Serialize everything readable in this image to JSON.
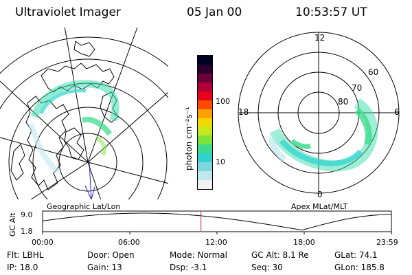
{
  "header": {
    "title": "Ultraviolet Imager",
    "date": "05 Jan 00",
    "time": "10:53:57 UT"
  },
  "colorbar": {
    "unit_label": "photon cm⁻²s⁻¹",
    "tick_100": "100",
    "tick_10": "10",
    "colors": [
      "#f2f2f2",
      "#bfe8ee",
      "#7fd7dd",
      "#2fd4cf",
      "#3ddc8c",
      "#7fe23a",
      "#c8e81e",
      "#f0d800",
      "#ff9f00",
      "#ff4a00",
      "#e8001a",
      "#b00038",
      "#6a0038",
      "#2a0030",
      "#000020"
    ]
  },
  "left_map": {
    "label": "Geographic Lat/Lon"
  },
  "right_map": {
    "label": "Apex  MLat/MLT",
    "mlt": {
      "top": "12",
      "left": "18",
      "right": "6",
      "bottom": "0"
    },
    "lat": {
      "l60": "60",
      "l70": "70",
      "l80": "80"
    }
  },
  "altitude_plot": {
    "ylabel": "GC Alt",
    "y_top": "9.0",
    "y_bottom": "1.8",
    "x_ticks": [
      "00:00",
      "06:00",
      "12:00",
      "18:00",
      "23:59"
    ],
    "marker_time_hours": 10.899
  },
  "footer": {
    "filter": "Flt: LBHL",
    "ip": "IP: 18.0",
    "door": "Door: Open",
    "gain": "Gain: 13",
    "mode": "Mode: Normal",
    "dsp": "Dsp:    -3.1",
    "gc_alt": "GC Alt: 8.1 Re",
    "seq": "Seq: 30",
    "glat": "GLat:  74.1",
    "glon": "GLon: 185.8"
  }
}
